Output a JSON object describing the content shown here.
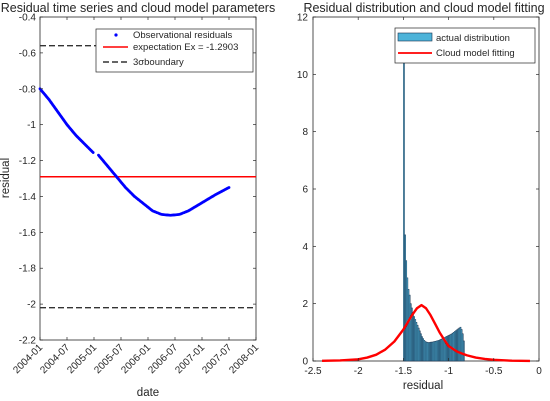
{
  "chart_data": [
    {
      "type": "line",
      "title": "Residual time series and cloud model parameters",
      "xlabel": "date",
      "ylabel": "residual",
      "xlim": [
        "2004-01",
        "2008-01"
      ],
      "ylim": [
        -2.2,
        -0.4
      ],
      "x_ticks": [
        "2004-01",
        "2004-07",
        "2005-01",
        "2005-07",
        "2006-01",
        "2006-07",
        "2007-01",
        "2007-07",
        "2008-01"
      ],
      "y_ticks": [
        -0.4,
        -0.6,
        -0.8,
        -1,
        -1.2,
        -1.4,
        -1.6,
        -1.8,
        -2,
        -2.2
      ],
      "grid": false,
      "legend_position": "top-right",
      "series": [
        {
          "name": "Observational residuals",
          "color": "#0000ff",
          "marker": "dot",
          "x": [
            "2004-01",
            "2004-03",
            "2004-05",
            "2004-07",
            "2004-09",
            "2004-11",
            "2005-01",
            "2005-02",
            "2005-04",
            "2005-06",
            "2005-08",
            "2005-10",
            "2005-12",
            "2006-02",
            "2006-04",
            "2006-06",
            "2006-08",
            "2006-10",
            "2006-12",
            "2007-02",
            "2007-04",
            "2007-07"
          ],
          "y": [
            -0.8,
            -0.86,
            -0.93,
            -1.0,
            -1.06,
            -1.11,
            -1.16,
            -1.17,
            -1.23,
            -1.29,
            -1.35,
            -1.4,
            -1.44,
            -1.48,
            -1.5,
            -1.505,
            -1.5,
            -1.48,
            -1.45,
            -1.42,
            -1.39,
            -1.35
          ]
        },
        {
          "name": "expectation Ex = -1.2903",
          "color": "#ff0000",
          "style": "solid",
          "value": -1.2903
        },
        {
          "name": "3σboundary",
          "color": "#333333",
          "style": "dashed",
          "values": [
            -0.56,
            -2.02
          ]
        }
      ]
    },
    {
      "type": "bar",
      "title": "Residual distribution and cloud model fitting",
      "xlabel": "residual",
      "ylabel": "",
      "xlim": [
        -2.5,
        0
      ],
      "ylim": [
        0,
        12
      ],
      "x_ticks": [
        -2.5,
        -2,
        -1.5,
        -1,
        -0.5,
        0
      ],
      "y_ticks": [
        0,
        2,
        4,
        6,
        8,
        10,
        12
      ],
      "grid": false,
      "legend_position": "top-right",
      "series": [
        {
          "name": "actual distribution",
          "color": "#4db3d9",
          "edge_color": "#1a3350",
          "bin_width": 0.0125,
          "bins": [
            {
              "x": -1.5,
              "y": 11.2
            },
            {
              "x": -1.4875,
              "y": 4.4
            },
            {
              "x": -1.475,
              "y": 3.5
            },
            {
              "x": -1.4625,
              "y": 2.9
            },
            {
              "x": -1.45,
              "y": 2.5
            },
            {
              "x": -1.4375,
              "y": 2.3
            },
            {
              "x": -1.425,
              "y": 2.0
            },
            {
              "x": -1.4125,
              "y": 1.85
            },
            {
              "x": -1.4,
              "y": 1.7
            },
            {
              "x": -1.3875,
              "y": 1.55
            },
            {
              "x": -1.375,
              "y": 1.45
            },
            {
              "x": -1.3625,
              "y": 1.35
            },
            {
              "x": -1.35,
              "y": 1.25
            },
            {
              "x": -1.3375,
              "y": 1.15
            },
            {
              "x": -1.325,
              "y": 1.05
            },
            {
              "x": -1.3125,
              "y": 0.95
            },
            {
              "x": -1.3,
              "y": 0.85
            },
            {
              "x": -1.2875,
              "y": 0.78
            },
            {
              "x": -1.275,
              "y": 0.72
            },
            {
              "x": -1.2625,
              "y": 0.68
            },
            {
              "x": -1.25,
              "y": 0.66
            },
            {
              "x": -1.2375,
              "y": 0.65
            },
            {
              "x": -1.225,
              "y": 0.64
            },
            {
              "x": -1.2125,
              "y": 0.65
            },
            {
              "x": -1.2,
              "y": 0.66
            },
            {
              "x": -1.1875,
              "y": 0.66
            },
            {
              "x": -1.175,
              "y": 0.67
            },
            {
              "x": -1.1625,
              "y": 0.68
            },
            {
              "x": -1.15,
              "y": 0.69
            },
            {
              "x": -1.1375,
              "y": 0.7
            },
            {
              "x": -1.125,
              "y": 0.71
            },
            {
              "x": -1.1125,
              "y": 0.72
            },
            {
              "x": -1.1,
              "y": 0.74
            },
            {
              "x": -1.0875,
              "y": 0.76
            },
            {
              "x": -1.075,
              "y": 0.78
            },
            {
              "x": -1.0625,
              "y": 0.8
            },
            {
              "x": -1.05,
              "y": 0.82
            },
            {
              "x": -1.0375,
              "y": 0.84
            },
            {
              "x": -1.025,
              "y": 0.86
            },
            {
              "x": -1.0125,
              "y": 0.88
            },
            {
              "x": -1.0,
              "y": 0.9
            },
            {
              "x": -0.9875,
              "y": 0.92
            },
            {
              "x": -0.975,
              "y": 0.94
            },
            {
              "x": -0.9625,
              "y": 0.97
            },
            {
              "x": -0.95,
              "y": 1.0
            },
            {
              "x": -0.9375,
              "y": 1.03
            },
            {
              "x": -0.925,
              "y": 1.06
            },
            {
              "x": -0.9125,
              "y": 1.09
            },
            {
              "x": -0.9,
              "y": 1.12
            },
            {
              "x": -0.8875,
              "y": 1.15
            },
            {
              "x": -0.875,
              "y": 1.18
            },
            {
              "x": -0.8625,
              "y": 1.1
            },
            {
              "x": -0.85,
              "y": 0.95
            },
            {
              "x": -0.8375,
              "y": 0.7
            }
          ]
        },
        {
          "name": "Cloud model fitting",
          "color": "#ff0000",
          "type": "line",
          "x": [
            -2.4,
            -2.2,
            -2.0,
            -1.9,
            -1.8,
            -1.7,
            -1.6,
            -1.5,
            -1.45,
            -1.4,
            -1.35,
            -1.3,
            -1.25,
            -1.2,
            -1.15,
            -1.1,
            -1.05,
            -1.0,
            -0.9,
            -0.8,
            -0.7,
            -0.6,
            -0.5,
            -0.3,
            -0.1
          ],
          "y": [
            0.005,
            0.02,
            0.06,
            0.12,
            0.22,
            0.4,
            0.68,
            1.1,
            1.36,
            1.62,
            1.84,
            1.95,
            1.84,
            1.6,
            1.3,
            1.0,
            0.75,
            0.52,
            0.32,
            0.2,
            0.12,
            0.07,
            0.04,
            0.01,
            0.003
          ]
        }
      ]
    }
  ]
}
